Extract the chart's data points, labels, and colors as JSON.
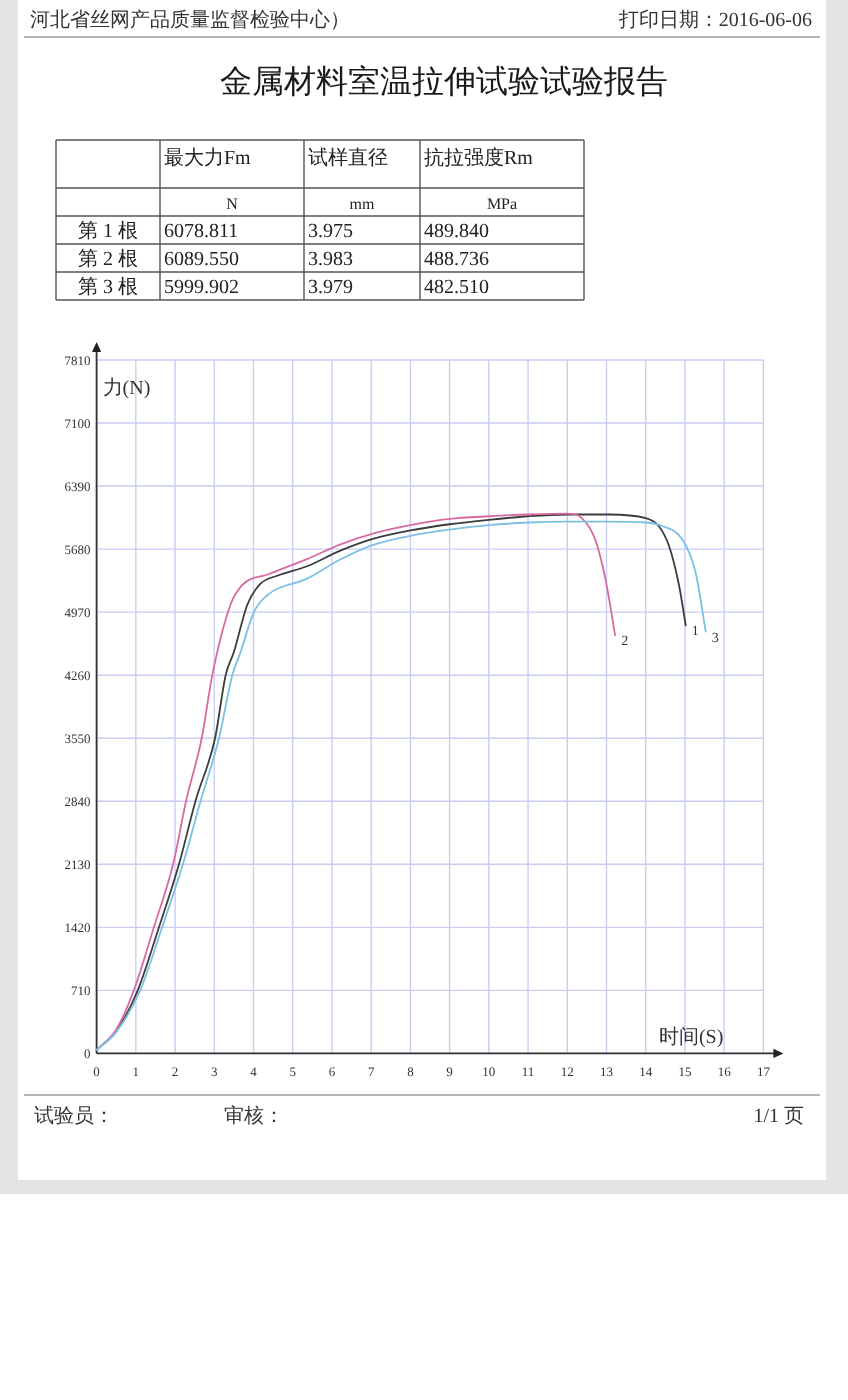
{
  "chart_data": [
    {
      "type": "other",
      "title": "金属材料室温拉伸试验试验报告",
      "annotations": [
        "河北省丝网产品质量监督检验中心）",
        "打印日期：2016-06-06",
        "试验员：",
        "审核：",
        "1/1 页"
      ],
      "categories": [
        "最大力Fm",
        "试样直径",
        "抗拉强度Rm"
      ],
      "y_categories": [
        null,
        "第 1 根",
        "第 2 根",
        "第 3 根"
      ],
      "cell_labels": [
        [
          "N",
          "mm",
          "MPa"
        ],
        [
          "6078.811",
          "3.975",
          "489.840"
        ],
        [
          "6089.550",
          "3.983",
          "488.736"
        ],
        [
          "5999.902",
          "3.979",
          "482.510"
        ]
      ]
    },
    {
      "type": "line",
      "xlabel": "时间(S)",
      "ylabel": "力(N)",
      "xlim": [
        0,
        17
      ],
      "ylim": [
        0,
        7810
      ],
      "xticks": [
        0,
        1,
        2,
        3,
        4,
        5,
        6,
        7,
        8,
        9,
        10,
        11,
        12,
        13,
        14,
        15,
        16,
        17
      ],
      "yticks": [
        0,
        710,
        1420,
        2130,
        2840,
        3550,
        4260,
        4970,
        5680,
        6390,
        7100,
        7810
      ],
      "grid": true,
      "series": [
        {
          "name": "1",
          "color": "#3c3c3c",
          "x": [
            0,
            0.5,
            1.05,
            1.59,
            2.1,
            2.52,
            3.02,
            3.29,
            3.5,
            3.84,
            4.18,
            4.6,
            5.38,
            6.2,
            7,
            8,
            9,
            10,
            11,
            12,
            13.05,
            14,
            14.33,
            14.59,
            14.85,
            15.02
          ],
          "values": [
            40,
            250,
            710,
            1420,
            2130,
            2840,
            3550,
            4260,
            4520,
            5050,
            5290,
            5380,
            5490,
            5660,
            5790,
            5890,
            5960,
            6010,
            6050,
            6070,
            6070,
            6030,
            5940,
            5720,
            5270,
            4820
          ]
        },
        {
          "name": "2",
          "color": "#d86aa2",
          "x": [
            0,
            0.5,
            0.95,
            1.46,
            1.95,
            2.28,
            2.68,
            2.95,
            3.41,
            3.7,
            4.4,
            5.38,
            6.2,
            7,
            8,
            9,
            10,
            11,
            12,
            12.37,
            12.71,
            12.97,
            13.22
          ],
          "values": [
            40,
            270,
            710,
            1420,
            2130,
            2840,
            3550,
            4260,
            5050,
            5270,
            5400,
            5570,
            5730,
            5850,
            5950,
            6020,
            6050,
            6070,
            6080,
            6030,
            5790,
            5350,
            4710
          ]
        },
        {
          "name": "3",
          "color": "#7cc0e4",
          "x": [
            0,
            0.5,
            1.11,
            1.67,
            2.2,
            2.65,
            3.12,
            3.46,
            3.67,
            4.01,
            4.35,
            5.38,
            6.2,
            7,
            8,
            9,
            10,
            11,
            12,
            13,
            14,
            14.42,
            14.93,
            15.27,
            15.53
          ],
          "values": [
            40,
            240,
            710,
            1420,
            2130,
            2840,
            3550,
            4260,
            4520,
            4970,
            5160,
            5350,
            5560,
            5720,
            5830,
            5900,
            5950,
            5980,
            5990,
            5990,
            5980,
            5940,
            5790,
            5420,
            4750
          ]
        }
      ]
    }
  ]
}
